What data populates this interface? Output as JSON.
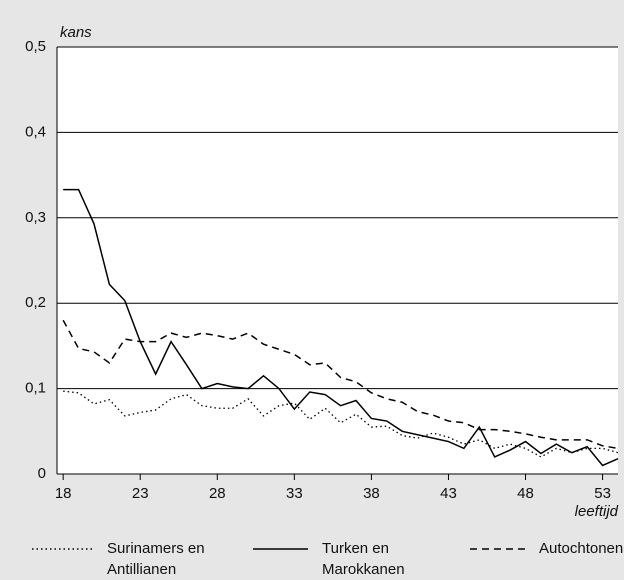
{
  "chart_data": {
    "type": "line",
    "y_label": "kans",
    "x_label": "leeftijd",
    "x": [
      18,
      19,
      20,
      21,
      22,
      23,
      24,
      25,
      26,
      27,
      28,
      29,
      30,
      31,
      32,
      33,
      34,
      35,
      36,
      37,
      38,
      39,
      40,
      41,
      42,
      43,
      44,
      45,
      46,
      47,
      48,
      49,
      50,
      51,
      52,
      53,
      54
    ],
    "series": [
      {
        "name": "Surinamers en Antillianen",
        "color": "#000000",
        "style": "dotted",
        "values": [
          0.097,
          0.095,
          0.082,
          0.087,
          0.068,
          0.072,
          0.075,
          0.088,
          0.093,
          0.08,
          0.077,
          0.077,
          0.088,
          0.068,
          0.08,
          0.083,
          0.064,
          0.077,
          0.06,
          0.07,
          0.055,
          0.056,
          0.045,
          0.042,
          0.048,
          0.043,
          0.035,
          0.04,
          0.03,
          0.035,
          0.03,
          0.02,
          0.03,
          0.025,
          0.03,
          0.03,
          0.025
        ]
      },
      {
        "name": "Turken en Marokkanen",
        "color": "#000000",
        "style": "solid",
        "values": [
          0.333,
          0.333,
          0.293,
          0.222,
          0.203,
          0.155,
          0.117,
          0.155,
          0.128,
          0.1,
          0.106,
          0.102,
          0.1,
          0.115,
          0.1,
          0.076,
          0.096,
          0.093,
          0.08,
          0.086,
          0.065,
          0.062,
          0.05,
          0.046,
          0.042,
          0.038,
          0.03,
          0.055,
          0.02,
          0.028,
          0.038,
          0.024,
          0.035,
          0.025,
          0.032,
          0.01,
          0.018
        ]
      },
      {
        "name": "Autochtonen",
        "color": "#000000",
        "style": "dashed",
        "values": [
          0.18,
          0.147,
          0.143,
          0.13,
          0.158,
          0.155,
          0.155,
          0.165,
          0.16,
          0.165,
          0.162,
          0.158,
          0.165,
          0.152,
          0.146,
          0.14,
          0.128,
          0.13,
          0.113,
          0.108,
          0.095,
          0.088,
          0.084,
          0.073,
          0.069,
          0.062,
          0.06,
          0.052,
          0.052,
          0.05,
          0.047,
          0.043,
          0.04,
          0.04,
          0.04,
          0.033,
          0.03
        ]
      }
    ],
    "xlim": [
      17.6,
      54
    ],
    "xticks": [
      18,
      23,
      28,
      33,
      38,
      43,
      48,
      53
    ],
    "ylim": [
      0,
      0.5
    ],
    "yticks": [
      0,
      {
        "value": 0.1,
        "label": "0,1"
      },
      {
        "value": 0.2,
        "label": "0,2"
      },
      {
        "value": 0.3,
        "label": "0,3"
      },
      {
        "value": 0.4,
        "label": "0,4"
      },
      {
        "value": 0.5,
        "label": "0,5"
      }
    ],
    "grid": true
  }
}
